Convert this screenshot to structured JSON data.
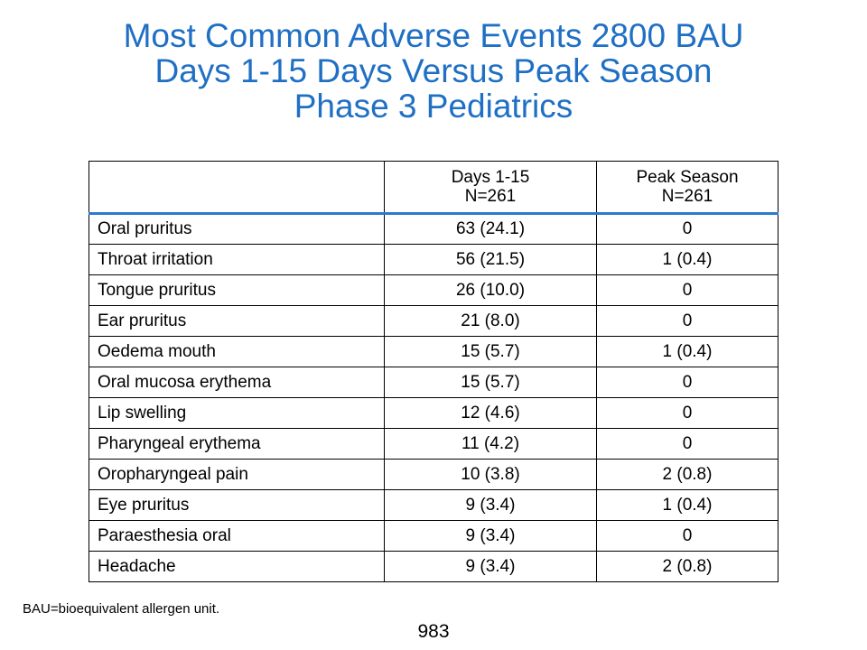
{
  "title": {
    "line1": "Most Common Adverse Events 2800 BAU",
    "line2": "Days 1-15 Days Versus Peak Season",
    "line3": "Phase 3 Pediatrics"
  },
  "colors": {
    "title": "#1f6fc4",
    "header_rule": "#2a7bd0"
  },
  "table": {
    "columns": [
      {
        "line1": "",
        "line2": ""
      },
      {
        "line1": "Days 1-15",
        "line2": "N=261"
      },
      {
        "line1": "Peak Season",
        "line2": "N=261"
      }
    ],
    "rows": [
      {
        "event": "Oral pruritus",
        "days_1_15": "63 (24.1)",
        "peak_season": "0"
      },
      {
        "event": "Throat irritation",
        "days_1_15": "56 (21.5)",
        "peak_season": "1 (0.4)"
      },
      {
        "event": "Tongue pruritus",
        "days_1_15": "26 (10.0)",
        "peak_season": "0"
      },
      {
        "event": "Ear pruritus",
        "days_1_15": "21 (8.0)",
        "peak_season": "0"
      },
      {
        "event": "Oedema mouth",
        "days_1_15": "15 (5.7)",
        "peak_season": "1 (0.4)"
      },
      {
        "event": "Oral mucosa erythema",
        "days_1_15": "15 (5.7)",
        "peak_season": "0"
      },
      {
        "event": "Lip swelling",
        "days_1_15": "12 (4.6)",
        "peak_season": "0"
      },
      {
        "event": "Pharyngeal erythema",
        "days_1_15": "11 (4.2)",
        "peak_season": "0"
      },
      {
        "event": "Oropharyngeal pain",
        "days_1_15": "10 (3.8)",
        "peak_season": "2 (0.8)"
      },
      {
        "event": "Eye pruritus",
        "days_1_15": "9 (3.4)",
        "peak_season": "1 (0.4)"
      },
      {
        "event": "Paraesthesia oral",
        "days_1_15": "9 (3.4)",
        "peak_season": "0"
      },
      {
        "event": "Headache",
        "days_1_15": "9 (3.4)",
        "peak_season": "2 (0.8)"
      }
    ]
  },
  "footnote": "BAU=bioequivalent allergen unit.",
  "page_number": "983"
}
